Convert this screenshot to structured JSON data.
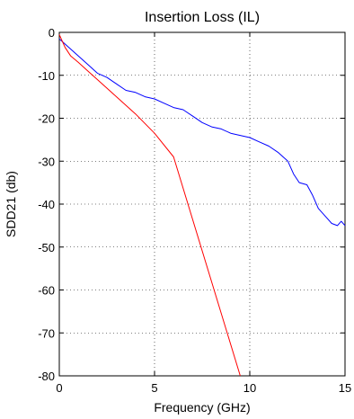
{
  "chart_data": {
    "type": "line",
    "title": "Insertion Loss (IL)",
    "xlabel": "Frequency (GHz)",
    "ylabel": "SDD21 (db)",
    "xlim": [
      0,
      15
    ],
    "ylim": [
      -80,
      0
    ],
    "xticks": [
      0,
      5,
      10,
      15
    ],
    "yticks": [
      0,
      -10,
      -20,
      -30,
      -40,
      -50,
      -60,
      -70,
      -80
    ],
    "grid": true,
    "legend": "none",
    "series": [
      {
        "color": "#0000ff",
        "x": [
          0,
          0.5,
          1.0,
          1.5,
          2.0,
          2.5,
          3.0,
          3.5,
          4.0,
          4.5,
          5.0,
          5.5,
          6.0,
          6.5,
          7.0,
          7.5,
          8.0,
          8.5,
          9.0,
          9.5,
          10.0,
          10.5,
          11.0,
          11.5,
          12.0,
          12.3,
          12.6,
          13.0,
          13.3,
          13.6,
          14.0,
          14.3,
          14.6,
          14.8,
          15.0
        ],
        "y": [
          -1.5,
          -3.5,
          -5.5,
          -7.5,
          -9.5,
          -10.5,
          -12,
          -13.5,
          -14,
          -15,
          -15.5,
          -16.5,
          -17.5,
          -18,
          -19.5,
          -21,
          -22,
          -22.5,
          -23.5,
          -24,
          -24.5,
          -25.5,
          -26.5,
          -28,
          -30,
          -33,
          -35,
          -35.5,
          -38,
          -41,
          -43,
          -44.5,
          -45,
          -44,
          -45
        ]
      },
      {
        "color": "#ff0000",
        "x": [
          0,
          0.3,
          0.6,
          1.0,
          1.5,
          2.0,
          3.0,
          4.0,
          5.0,
          6.0,
          9.5
        ],
        "y": [
          -0.5,
          -3.5,
          -5.5,
          -7,
          -9,
          -11,
          -15,
          -19,
          -23.5,
          -29,
          -80
        ]
      }
    ]
  }
}
